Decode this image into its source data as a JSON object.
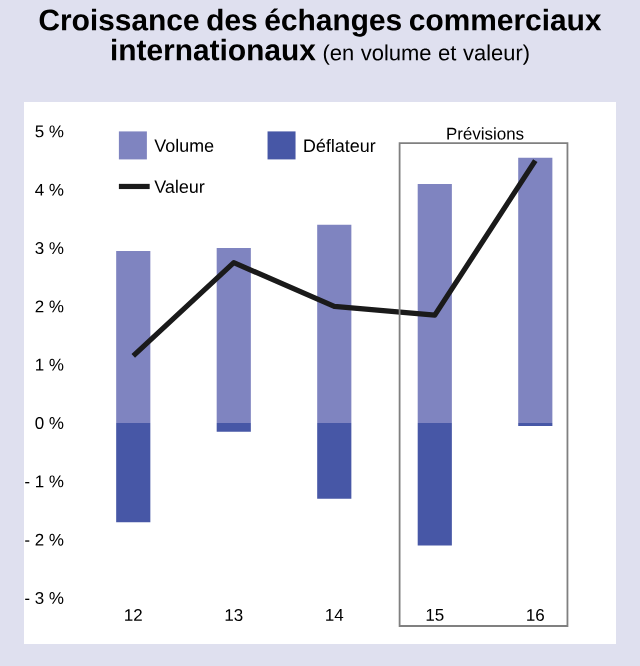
{
  "chart_data": {
    "type": "bar",
    "title": "Croissance des échanges commerciaux internationaux",
    "subtitle": "(en volume et valeur)",
    "categories": [
      "12",
      "13",
      "14",
      "15",
      "16"
    ],
    "series": [
      {
        "name": "Volume",
        "color": "#7f84c0",
        "values": [
          2.95,
          3.0,
          3.4,
          4.1,
          4.55
        ]
      },
      {
        "name": "Déflateur",
        "color": "#4757a6",
        "values": [
          -1.7,
          -0.15,
          -1.3,
          -2.1,
          -0.05
        ]
      },
      {
        "name": "Valeur",
        "type": "line",
        "color": "#1a1a1a",
        "values": [
          1.15,
          2.75,
          2.0,
          1.85,
          4.5
        ]
      }
    ],
    "stacked": true,
    "ylim": [
      -3,
      5
    ],
    "yticks": [
      {
        "value": 5,
        "label": "5 %"
      },
      {
        "value": 4,
        "label": "4 %"
      },
      {
        "value": 3,
        "label": "3 %"
      },
      {
        "value": 2,
        "label": "2 %"
      },
      {
        "value": 1,
        "label": "1 %"
      },
      {
        "value": 0,
        "label": "0 %"
      },
      {
        "value": -1,
        "label": "- 1 %"
      },
      {
        "value": -2,
        "label": "- 2 %"
      },
      {
        "value": -3,
        "label": "- 3 %"
      }
    ],
    "annotations": [
      "Prévisions"
    ],
    "legend": "top left",
    "grid": false,
    "marker": "none",
    "line_style": "solid"
  }
}
